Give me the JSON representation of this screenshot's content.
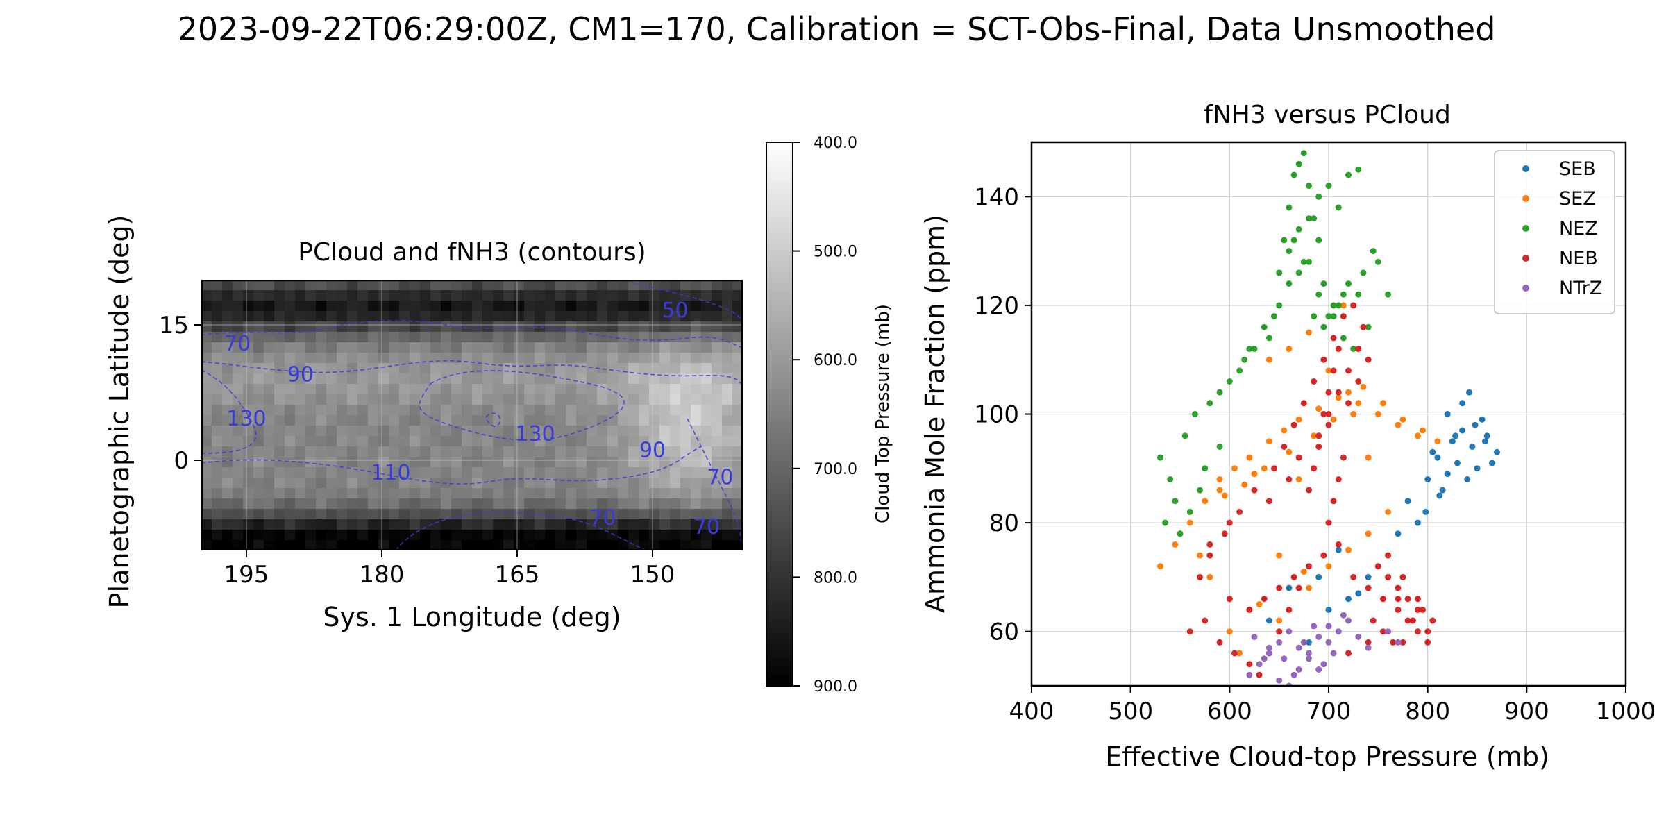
{
  "suptitle": "2023-09-22T06:29:00Z, CM1=170, Calibration = SCT-Obs-Final, Data Unsmoothed",
  "colors": {
    "contour": "#3b3bdc",
    "grid": "#bdbdbd"
  },
  "chart_data": [
    {
      "type": "heatmap",
      "title": "PCloud and fNH3 (contours)",
      "xlabel": "Sys. 1 Longitude (deg)",
      "ylabel": "Planetographic Latitude (deg)",
      "xlim": [
        200,
        140
      ],
      "ylim": [
        -10,
        20
      ],
      "x_ticks": [
        195,
        180,
        165,
        150
      ],
      "y_ticks": [
        0,
        15
      ],
      "grid": true,
      "colormap": "gray (dark = high pressure)",
      "colorbar": {
        "label": "Cloud Top Pressure (mb)",
        "range": [
          900,
          400
        ],
        "ticks": [
          "400.0",
          "500.0",
          "600.0",
          "700.0",
          "800.0",
          "900.0"
        ]
      },
      "contour_labels": [
        {
          "text": "70",
          "lon": 196,
          "lat": 12.8
        },
        {
          "text": "90",
          "lon": 189,
          "lat": 9.4
        },
        {
          "text": "130",
          "lon": 195,
          "lat": 4.5
        },
        {
          "text": "110",
          "lon": 179,
          "lat": -1.5
        },
        {
          "text": "130",
          "lon": 163,
          "lat": 2.8
        },
        {
          "text": "90",
          "lon": 150,
          "lat": 1
        },
        {
          "text": "70",
          "lon": 155.5,
          "lat": -6.5
        },
        {
          "text": "70",
          "lon": 142.5,
          "lat": -2
        },
        {
          "text": "70",
          "lon": 144,
          "lat": -7.5
        },
        {
          "text": "50",
          "lon": 147.5,
          "lat": 16.5
        }
      ]
    },
    {
      "type": "scatter",
      "title": "fNH3 versus PCloud",
      "xlabel": "Effective Cloud-top Pressure (mb)",
      "ylabel": "Ammonia Mole Fraction (ppm)",
      "xlim": [
        400,
        1000
      ],
      "ylim": [
        50,
        150
      ],
      "x_ticks": [
        400,
        500,
        600,
        700,
        800,
        900,
        1000
      ],
      "y_ticks": [
        60,
        80,
        100,
        120,
        140
      ],
      "grid": true,
      "legend": {
        "placement": "top-right"
      },
      "series": [
        {
          "name": "SEB",
          "color": "#1f77b4",
          "x": [
            810,
            825,
            835,
            845,
            855,
            860,
            870,
            850,
            840,
            830,
            820,
            815,
            805,
            800,
            820,
            835,
            848,
            858,
            865,
            842,
            828,
            812,
            798,
            790,
            760,
            750,
            740,
            720,
            700,
            680,
            660,
            640,
            770,
            780,
            710,
            690,
            650,
            730
          ],
          "y": [
            92,
            95,
            97,
            94,
            99,
            96,
            93,
            90,
            88,
            91,
            89,
            86,
            93,
            88,
            100,
            102,
            98,
            95,
            91,
            104,
            96,
            85,
            82,
            80,
            74,
            72,
            70,
            66,
            64,
            58,
            68,
            62,
            78,
            84,
            75,
            70,
            60,
            67
          ]
        },
        {
          "name": "SEZ",
          "color": "#ff7f0e",
          "x": [
            530,
            545,
            560,
            575,
            590,
            605,
            620,
            640,
            655,
            670,
            690,
            710,
            730,
            750,
            770,
            790,
            810,
            580,
            600,
            620,
            650,
            680,
            700,
            720,
            740,
            760,
            550,
            570,
            595,
            615,
            635,
            660,
            685,
            705,
            725,
            640,
            660,
            680,
            700,
            715,
            735,
            755,
            775,
            795,
            560,
            590,
            625,
            650,
            675,
            600,
            610,
            630,
            670,
            700,
            720,
            740
          ],
          "y": [
            72,
            76,
            80,
            84,
            88,
            90,
            92,
            95,
            97,
            99,
            101,
            103,
            102,
            100,
            98,
            96,
            95,
            70,
            66,
            64,
            62,
            68,
            72,
            75,
            78,
            82,
            78,
            74,
            85,
            87,
            90,
            93,
            96,
            99,
            100,
            110,
            112,
            115,
            118,
            120,
            105,
            102,
            99,
            97,
            82,
            86,
            89,
            74,
            71,
            60,
            56,
            65,
            88,
            108,
            104,
            92
          ]
        },
        {
          "name": "NEZ",
          "color": "#2ca02c",
          "x": [
            530,
            540,
            555,
            565,
            580,
            590,
            600,
            615,
            625,
            640,
            650,
            660,
            670,
            680,
            690,
            700,
            710,
            720,
            730,
            740,
            660,
            670,
            680,
            690,
            700,
            710,
            720,
            730,
            665,
            675,
            685,
            695,
            650,
            660,
            670,
            680,
            690,
            705,
            715,
            735,
            750,
            760,
            545,
            560,
            575,
            590,
            610,
            620,
            635,
            645,
            655,
            665,
            675,
            685,
            695,
            705,
            715,
            725,
            745,
            535,
            550,
            570
          ],
          "y": [
            92,
            88,
            96,
            100,
            102,
            104,
            106,
            110,
            112,
            114,
            120,
            124,
            126,
            128,
            122,
            118,
            120,
            124,
            122,
            116,
            130,
            134,
            136,
            140,
            142,
            138,
            144,
            145,
            132,
            128,
            118,
            116,
            126,
            138,
            146,
            142,
            132,
            120,
            122,
            126,
            128,
            122,
            84,
            82,
            90,
            94,
            108,
            112,
            116,
            118,
            132,
            144,
            148,
            136,
            124,
            118,
            114,
            112,
            130,
            80,
            78,
            86
          ]
        },
        {
          "name": "NEB",
          "color": "#d62728",
          "x": [
            560,
            575,
            590,
            605,
            620,
            635,
            650,
            665,
            680,
            695,
            710,
            725,
            740,
            755,
            770,
            785,
            800,
            750,
            760,
            770,
            780,
            790,
            745,
            755,
            765,
            775,
            785,
            795,
            700,
            705,
            710,
            715,
            690,
            695,
            700,
            705,
            710,
            680,
            685,
            690,
            700,
            720,
            730,
            740,
            760,
            770,
            780,
            790,
            800,
            620,
            630,
            640,
            650,
            660,
            670,
            580,
            600,
            640,
            660,
            670,
            690,
            700,
            710,
            720,
            730,
            735,
            725,
            715,
            705,
            695,
            685,
            675,
            665,
            655,
            645,
            625,
            610,
            595,
            580,
            570,
            600,
            760,
            775,
            790,
            805,
            740,
            720
          ],
          "y": [
            60,
            62,
            58,
            56,
            64,
            66,
            68,
            70,
            72,
            74,
            76,
            70,
            68,
            66,
            64,
            62,
            60,
            72,
            70,
            68,
            66,
            64,
            62,
            60,
            58,
            58,
            62,
            64,
            80,
            84,
            88,
            92,
            96,
            100,
            104,
            108,
            112,
            86,
            90,
            94,
            98,
            102,
            106,
            110,
            70,
            66,
            62,
            60,
            58,
            54,
            52,
            56,
            60,
            64,
            68,
            74,
            80,
            84,
            88,
            92,
            96,
            100,
            104,
            108,
            112,
            116,
            120,
            118,
            114,
            110,
            106,
            102,
            98,
            94,
            90,
            86,
            82,
            78,
            76,
            70,
            66,
            74,
            70,
            66,
            62,
            58,
            56
          ]
        },
        {
          "name": "NTrZ",
          "color": "#9467bd",
          "x": [
            620,
            630,
            640,
            650,
            660,
            670,
            680,
            690,
            700,
            710,
            720,
            730,
            740,
            650,
            660,
            670,
            680,
            690,
            700,
            640,
            655,
            665,
            675,
            685,
            695,
            705,
            715,
            625,
            635,
            760,
            770
          ],
          "y": [
            52,
            54,
            56,
            58,
            60,
            57,
            55,
            53,
            58,
            60,
            62,
            59,
            57,
            51,
            50,
            53,
            56,
            59,
            61,
            57,
            55,
            52,
            58,
            61,
            54,
            56,
            63,
            59,
            55,
            60,
            58
          ]
        }
      ]
    }
  ]
}
